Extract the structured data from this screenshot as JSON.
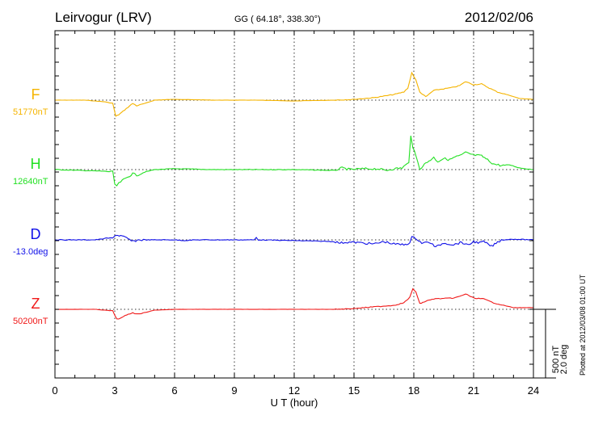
{
  "header": {
    "station": "Leirvogur (LRV)",
    "coords": "GG ( 64.18°, 338.30°)",
    "date": "2012/02/06"
  },
  "footer": {
    "plotted": "Plotted at 2012/03/08 01:00 UT"
  },
  "chart_data": {
    "type": "line",
    "title": "Leirvogur (LRV)",
    "xlabel": "U T (hour)",
    "xlim": [
      0,
      24
    ],
    "xticks": [
      "0",
      "3",
      "6",
      "9",
      "12",
      "15",
      "18",
      "21",
      "24"
    ],
    "grid": true,
    "scale_bar": {
      "nT": 500,
      "deg": 2.0,
      "label_nT": "500 nT",
      "label_deg": "2.0 deg"
    },
    "series": [
      {
        "name": "F",
        "baseline_label": "51770nT",
        "unit": "nT",
        "color": "#f5b400",
        "points": [
          [
            0,
            0
          ],
          [
            1.5,
            0
          ],
          [
            2.5,
            -12
          ],
          [
            2.9,
            -24
          ],
          [
            3.05,
            -118
          ],
          [
            3.2,
            -106
          ],
          [
            3.5,
            -71
          ],
          [
            3.9,
            -24
          ],
          [
            4.1,
            -41
          ],
          [
            4.5,
            -24
          ],
          [
            5,
            0
          ],
          [
            6,
            6
          ],
          [
            8,
            0
          ],
          [
            10,
            0
          ],
          [
            12,
            -6
          ],
          [
            14,
            0
          ],
          [
            15,
            6
          ],
          [
            16,
            18
          ],
          [
            17,
            41
          ],
          [
            17.5,
            59
          ],
          [
            17.7,
            88
          ],
          [
            17.9,
            200
          ],
          [
            18.1,
            147
          ],
          [
            18.3,
            59
          ],
          [
            18.6,
            24
          ],
          [
            19,
            71
          ],
          [
            19.5,
            82
          ],
          [
            20,
            94
          ],
          [
            20.3,
            106
          ],
          [
            20.6,
            135
          ],
          [
            21,
            112
          ],
          [
            21.4,
            118
          ],
          [
            21.7,
            94
          ],
          [
            22.2,
            59
          ],
          [
            22.8,
            35
          ],
          [
            23.3,
            12
          ],
          [
            24,
            6
          ]
        ]
      },
      {
        "name": "H",
        "baseline_label": "12640nT",
        "unit": "nT",
        "color": "#22e022",
        "points": [
          [
            0,
            0
          ],
          [
            2.5,
            -12
          ],
          [
            2.9,
            -18
          ],
          [
            3.0,
            -106
          ],
          [
            3.1,
            -118
          ],
          [
            3.3,
            -88
          ],
          [
            3.6,
            -59
          ],
          [
            3.9,
            -29
          ],
          [
            4.1,
            -41
          ],
          [
            4.5,
            -18
          ],
          [
            5,
            0
          ],
          [
            6,
            6
          ],
          [
            8,
            0
          ],
          [
            10,
            0
          ],
          [
            12,
            0
          ],
          [
            14,
            -6
          ],
          [
            14.4,
            12
          ],
          [
            14.8,
            0
          ],
          [
            15.5,
            6
          ],
          [
            16.2,
            6
          ],
          [
            16.6,
            -6
          ],
          [
            17,
            6
          ],
          [
            17.4,
            12
          ],
          [
            17.6,
            35
          ],
          [
            17.75,
            47
          ],
          [
            17.85,
            253
          ],
          [
            17.95,
            165
          ],
          [
            18.1,
            100
          ],
          [
            18.3,
            6
          ],
          [
            18.6,
            47
          ],
          [
            19,
            88
          ],
          [
            19.2,
            59
          ],
          [
            19.5,
            82
          ],
          [
            19.8,
            71
          ],
          [
            20,
            88
          ],
          [
            20.4,
            106
          ],
          [
            20.6,
            124
          ],
          [
            21,
            106
          ],
          [
            21.4,
            100
          ],
          [
            21.7,
            71
          ],
          [
            22,
            41
          ],
          [
            22.4,
            29
          ],
          [
            22.8,
            35
          ],
          [
            23.3,
            12
          ],
          [
            24,
            0
          ]
        ]
      },
      {
        "name": "D",
        "baseline_label": "-13.0deg",
        "unit": "deg",
        "color": "#1010e8",
        "points": [
          [
            0,
            0
          ],
          [
            2,
            0
          ],
          [
            2.3,
            0.02
          ],
          [
            2.6,
            0.05
          ],
          [
            2.9,
            0.05
          ],
          [
            3.0,
            0.14
          ],
          [
            3.3,
            0.12
          ],
          [
            3.6,
            0.05
          ],
          [
            3.9,
            -0.05
          ],
          [
            4.2,
            0
          ],
          [
            5,
            0
          ],
          [
            6,
            0
          ],
          [
            6.5,
            -0.02
          ],
          [
            7,
            0
          ],
          [
            10,
            0
          ],
          [
            10.1,
            0.07
          ],
          [
            10.2,
            0
          ],
          [
            12,
            -0.02
          ],
          [
            14,
            -0.05
          ],
          [
            14.3,
            -0.09
          ],
          [
            14.6,
            -0.07
          ],
          [
            15,
            -0.07
          ],
          [
            16,
            -0.12
          ],
          [
            16.5,
            -0.05
          ],
          [
            17,
            -0.12
          ],
          [
            17.5,
            -0.14
          ],
          [
            17.8,
            -0.09
          ],
          [
            17.9,
            0.07
          ],
          [
            18.1,
            0.05
          ],
          [
            18.4,
            -0.09
          ],
          [
            18.8,
            -0.07
          ],
          [
            19.1,
            -0.21
          ],
          [
            19.5,
            -0.09
          ],
          [
            20,
            -0.14
          ],
          [
            20.4,
            -0.07
          ],
          [
            20.7,
            -0.16
          ],
          [
            21,
            -0.05
          ],
          [
            21.3,
            -0.09
          ],
          [
            21.5,
            -0.05
          ],
          [
            21.9,
            -0.19
          ],
          [
            22.2,
            -0.07
          ],
          [
            22.4,
            0
          ],
          [
            23,
            0.02
          ],
          [
            24,
            0
          ]
        ]
      },
      {
        "name": "Z",
        "baseline_label": "50200nT",
        "unit": "nT",
        "color": "#f01818",
        "points": [
          [
            0,
            0
          ],
          [
            2,
            0
          ],
          [
            2.5,
            -6
          ],
          [
            2.9,
            -12
          ],
          [
            3.1,
            -71
          ],
          [
            3.3,
            -65
          ],
          [
            3.6,
            -41
          ],
          [
            3.9,
            -24
          ],
          [
            4.1,
            -35
          ],
          [
            4.5,
            -24
          ],
          [
            5,
            -6
          ],
          [
            6,
            0
          ],
          [
            12,
            0
          ],
          [
            14,
            0
          ],
          [
            15,
            6
          ],
          [
            16,
            18
          ],
          [
            17,
            29
          ],
          [
            17.5,
            47
          ],
          [
            17.8,
            88
          ],
          [
            17.95,
            147
          ],
          [
            18.1,
            130
          ],
          [
            18.3,
            41
          ],
          [
            18.6,
            59
          ],
          [
            19,
            76
          ],
          [
            20,
            82
          ],
          [
            20.3,
            94
          ],
          [
            20.6,
            112
          ],
          [
            21,
            82
          ],
          [
            21.5,
            76
          ],
          [
            22,
            47
          ],
          [
            23,
            12
          ],
          [
            24,
            12
          ]
        ]
      }
    ]
  }
}
